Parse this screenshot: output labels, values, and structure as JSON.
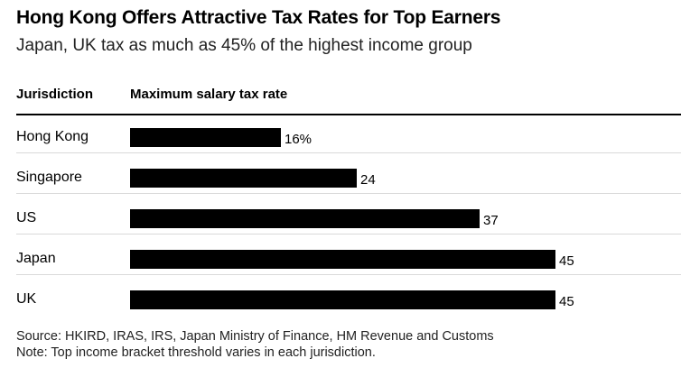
{
  "chart_data": {
    "type": "bar",
    "orientation": "horizontal",
    "title": "Hong Kong Offers Attractive Tax Rates for Top Earners",
    "subtitle": "Japan, UK tax as much as 45% of the highest income group",
    "column_headers": {
      "category": "Jurisdiction",
      "value": "Maximum salary tax rate"
    },
    "categories": [
      "Hong Kong",
      "Singapore",
      "US",
      "Japan",
      "UK"
    ],
    "values": [
      16,
      24,
      37,
      45,
      45
    ],
    "value_labels": [
      "16%",
      "24",
      "37",
      "45",
      "45"
    ],
    "xlim": [
      0,
      45
    ],
    "bar_color": "#000000",
    "grid": false,
    "legend": "none"
  },
  "footer": {
    "source": "Source: HKIRD, IRAS, IRS, Japan Ministry of Finance, HM Revenue and Customs",
    "note": "Note: Top income bracket threshold varies in each jurisdiction."
  }
}
